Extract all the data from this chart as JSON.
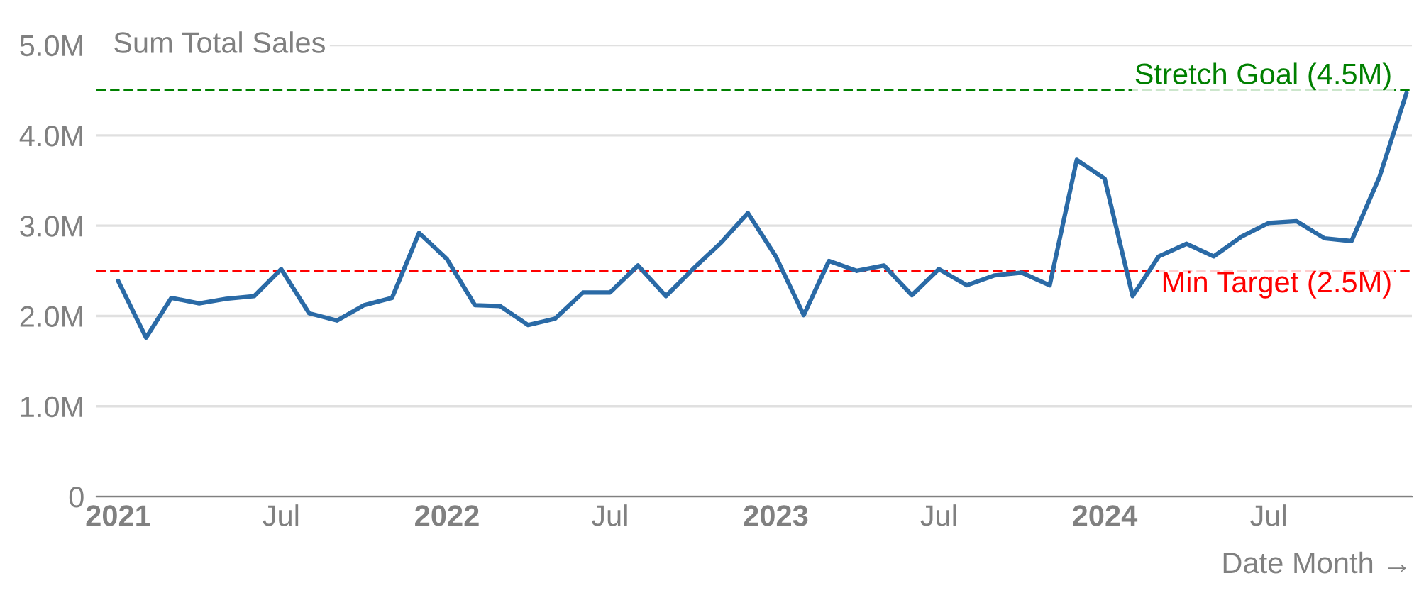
{
  "chart_data": {
    "type": "line",
    "ylabel": "Sum Total Sales",
    "xlabel": "Date Month →",
    "x": [
      "2021-01",
      "2021-02",
      "2021-03",
      "2021-04",
      "2021-05",
      "2021-06",
      "2021-07",
      "2021-08",
      "2021-09",
      "2021-10",
      "2021-11",
      "2021-12",
      "2022-01",
      "2022-02",
      "2022-03",
      "2022-04",
      "2022-05",
      "2022-06",
      "2022-07",
      "2022-08",
      "2022-09",
      "2022-10",
      "2022-11",
      "2022-12",
      "2023-01",
      "2023-02",
      "2023-03",
      "2023-04",
      "2023-05",
      "2023-06",
      "2023-07",
      "2023-08",
      "2023-09",
      "2023-10",
      "2023-11",
      "2023-12",
      "2024-01",
      "2024-02",
      "2024-03",
      "2024-04",
      "2024-05",
      "2024-06",
      "2024-07",
      "2024-08",
      "2024-09",
      "2024-10",
      "2024-11",
      "2024-12"
    ],
    "series": [
      {
        "color": "#2a6aa6",
        "values": [
          2390000,
          1760000,
          2200000,
          2140000,
          2190000,
          2220000,
          2520000,
          2030000,
          1950000,
          2120000,
          2200000,
          2920000,
          2630000,
          2120000,
          2110000,
          1900000,
          1970000,
          2260000,
          2260000,
          2560000,
          2220000,
          2520000,
          2810000,
          3140000,
          2660000,
          2010000,
          2610000,
          2500000,
          2560000,
          2230000,
          2520000,
          2340000,
          2450000,
          2480000,
          2340000,
          3730000,
          3520000,
          2220000,
          2660000,
          2800000,
          2660000,
          2880000,
          3030000,
          3050000,
          2860000,
          2830000,
          3540000,
          4470000
        ]
      }
    ],
    "xlim": [
      "2020-12-08",
      "2024-12-07"
    ],
    "xticks": [
      {
        "value": "2021-01-01",
        "label": "2021"
      },
      {
        "value": "2021-07-01",
        "label": "Jul"
      },
      {
        "value": "2022-01-01",
        "label": "2022"
      },
      {
        "value": "2022-07-01",
        "label": "Jul"
      },
      {
        "value": "2023-01-01",
        "label": "2023"
      },
      {
        "value": "2023-07-01",
        "label": "Jul"
      },
      {
        "value": "2024-01-01",
        "label": "2024"
      },
      {
        "value": "2024-07-01",
        "label": "Jul"
      }
    ],
    "ylim": [
      0,
      5000000
    ],
    "yticks": [
      {
        "value": 0,
        "label": "0"
      },
      {
        "value": 1000000,
        "label": "1.0M"
      },
      {
        "value": 2000000,
        "label": "2.0M"
      },
      {
        "value": 3000000,
        "label": "3.0M"
      },
      {
        "value": 4000000,
        "label": "4.0M"
      },
      {
        "value": 5000000,
        "label": "5.0M"
      }
    ],
    "ref_lines": [
      {
        "axis": "y",
        "value": 2500000,
        "label": "Min Target (2.5M)",
        "color": "#ff0000",
        "line_style": "dashed"
      },
      {
        "axis": "y",
        "value": 4500000,
        "label": "Stretch Goal (4.5M)",
        "color": "#008000",
        "line_style": "dashed"
      }
    ],
    "grid": "y",
    "legend": false,
    "marker": "none",
    "line_style": "solid"
  }
}
